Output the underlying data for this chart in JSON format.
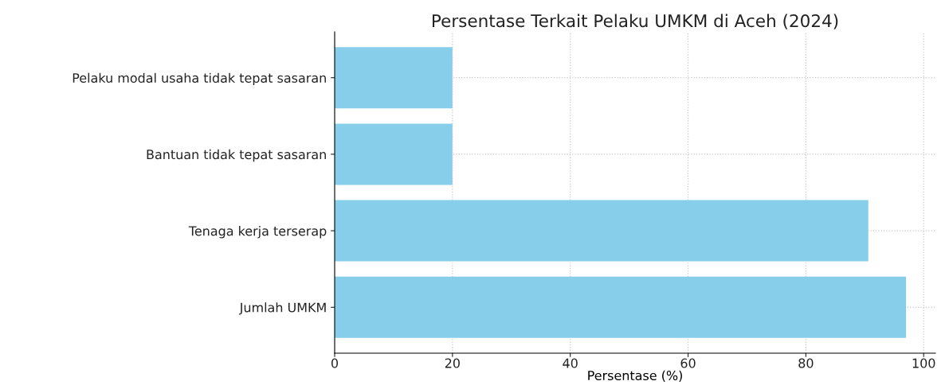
{
  "chart_data": {
    "type": "bar",
    "orientation": "horizontal",
    "title": "Persentase Terkait Pelaku UMKM di Aceh (2024)",
    "xlabel": "Persentase (%)",
    "categories": [
      "Pelaku modal usaha tidak tepat sasaran",
      "Bantuan tidak tepat sasaran",
      "Tenaga kerja terserap",
      "Jumlah UMKM"
    ],
    "values": [
      20,
      20,
      90.6,
      97.0
    ],
    "color": "#87ceeb",
    "xlim": [
      0,
      102
    ],
    "xticks": [
      0,
      20,
      40,
      60,
      80,
      100
    ],
    "grid": true
  }
}
